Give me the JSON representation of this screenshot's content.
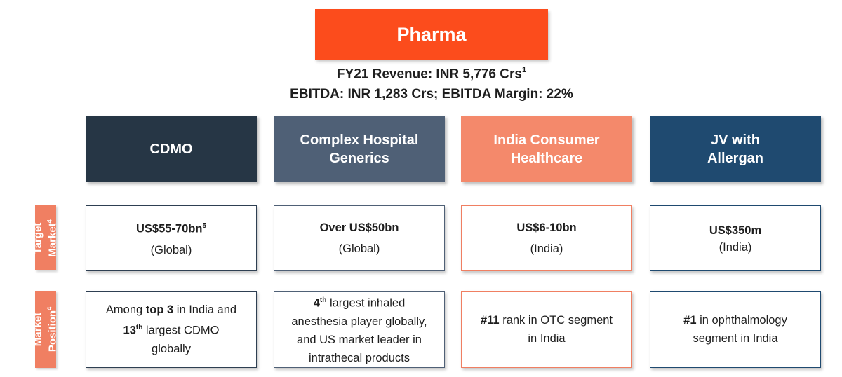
{
  "title": "Pharma",
  "revenue": {
    "line1": "FY21 Revenue: INR 5,776 Crs",
    "line1_sup": "1",
    "line2": "EBITDA: INR 1,283 Crs; EBITDA Margin: 22%"
  },
  "colors": {
    "title_bg": "#fc4c1c",
    "side_label_bg": "#f07f62"
  },
  "columns": [
    {
      "header_line1": "CDMO",
      "header_line2": "",
      "color": "#263645"
    },
    {
      "header_line1": "Complex Hospital",
      "header_line2": "Generics",
      "color": "#4f6076"
    },
    {
      "header_line1": "India Consumer",
      "header_line2": "Healthcare",
      "color": "#f4896b"
    },
    {
      "header_line1": "JV with",
      "header_line2": "Allergan",
      "color": "#1f4a70"
    }
  ],
  "row_labels": {
    "target_market": {
      "line1": "Target",
      "line2": "Market",
      "sup": "4"
    },
    "market_position": {
      "line1": "Market",
      "line2": "Position",
      "sup": "4"
    }
  },
  "target_market": [
    {
      "value": "US$55-70bn",
      "sup": "5",
      "region": "(Global)"
    },
    {
      "value": "Over US$50bn",
      "sup": "",
      "region": "(Global)"
    },
    {
      "value": "US$6-10bn",
      "sup": "",
      "region": "(India)"
    },
    {
      "value": "US$350m",
      "sup": "",
      "region": "(India)"
    }
  ],
  "market_position": {
    "c1": {
      "a": "Among ",
      "b": "top 3",
      "c": " in India and",
      "d": "13",
      "e": "th",
      "f": " largest CDMO",
      "g": "globally"
    },
    "c2": {
      "a": "4",
      "b": "th",
      "c": " largest inhaled",
      "d": "anesthesia player globally,",
      "e": "and US market leader in",
      "f": "intrathecal products"
    },
    "c3": {
      "a": "#11",
      "b": " rank in OTC segment",
      "c": "in India"
    },
    "c4": {
      "a": "#1",
      "b": " in ophthalmology",
      "c": "segment in India"
    }
  }
}
